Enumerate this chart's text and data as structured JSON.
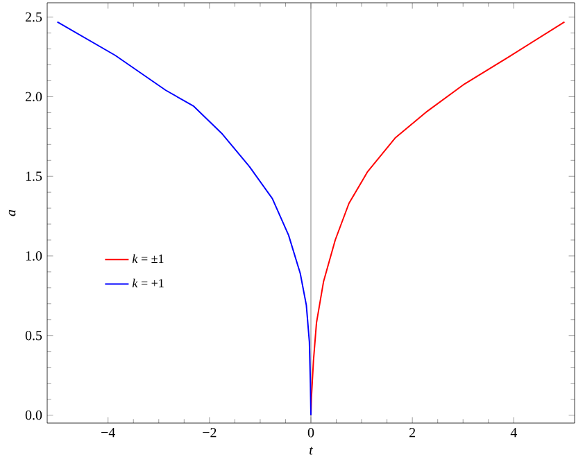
{
  "chart_data": {
    "type": "line",
    "xlabel": "t",
    "ylabel": "a",
    "series": [
      {
        "name": "*k* = ±1",
        "color": "#ff0000",
        "x": [
          0,
          0.01,
          0.05,
          0.11,
          0.25,
          0.48,
          0.75,
          1.12,
          1.66,
          2.3,
          3.03,
          3.9,
          5
        ],
        "values": [
          0,
          0.11,
          0.34,
          0.58,
          0.84,
          1.1,
          1.33,
          1.53,
          1.74,
          1.91,
          2.08,
          2.25,
          2.47
        ]
      },
      {
        "name": "*k* = +1",
        "color": "#0000ff",
        "x": [
          -5,
          -3.86,
          -2.86,
          -2.31,
          -1.76,
          -1.21,
          -0.76,
          -0.44,
          -0.21,
          -0.09,
          -0.03,
          -0.01,
          0
        ],
        "values": [
          2.47,
          2.26,
          2.04,
          1.94,
          1.77,
          1.56,
          1.36,
          1.13,
          0.89,
          0.69,
          0.46,
          0.2,
          0
        ]
      }
    ],
    "xlim": [
      -5.2,
      5.2
    ],
    "ylim": [
      -0.05,
      2.59
    ],
    "xticks": [
      {
        "value": -4,
        "label": "−4"
      },
      {
        "value": -2,
        "label": "−2"
      },
      0,
      2,
      4
    ],
    "yticks": [
      {
        "value": 0,
        "label": "0.0"
      },
      0.5,
      {
        "value": 1,
        "label": "1.0"
      },
      1.5,
      {
        "value": 2,
        "label": "2.0"
      },
      2.5
    ],
    "ref_lines": [
      {
        "axis": "x",
        "value": 0,
        "color": "#808080"
      }
    ],
    "legend": "center left",
    "grid": false,
    "line_style": "solid",
    "marker": "none"
  }
}
